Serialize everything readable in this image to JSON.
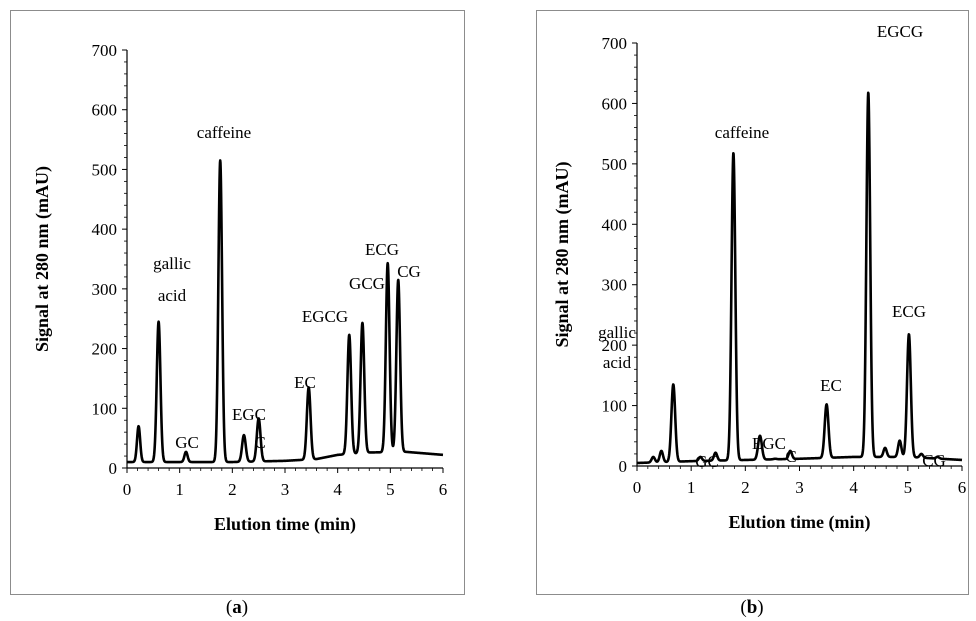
{
  "captions": {
    "a": "a",
    "b": "b"
  },
  "chart_data": [
    {
      "type": "line",
      "panel": "a",
      "title": "",
      "xlabel": "Elution time (min)",
      "ylabel": "Signal at 280 nm (mAU)",
      "xlim": [
        0,
        6
      ],
      "ylim": [
        0,
        700
      ],
      "xticks": [
        "0",
        "1",
        "2",
        "3",
        "4",
        "5",
        "6"
      ],
      "yticks": [
        "0",
        "100",
        "200",
        "300",
        "400",
        "500",
        "600",
        "700"
      ],
      "grid": false,
      "legend": "none",
      "line_color": "#000000",
      "baseline": [
        [
          0,
          10
        ],
        [
          2.0,
          10
        ],
        [
          3.0,
          12
        ],
        [
          3.6,
          15
        ],
        [
          4.0,
          22
        ],
        [
          4.6,
          26
        ],
        [
          5.3,
          27
        ],
        [
          6.0,
          22
        ]
      ],
      "peaks": [
        {
          "t": 0.22,
          "h": 70,
          "w": 0.03,
          "label": ""
        },
        {
          "t": 0.6,
          "h": 245,
          "w": 0.035,
          "label": "gallic acid"
        },
        {
          "t": 1.12,
          "h": 27,
          "w": 0.03,
          "label": "GC"
        },
        {
          "t": 1.77,
          "h": 515,
          "w": 0.035,
          "label": "caffeine"
        },
        {
          "t": 2.22,
          "h": 55,
          "w": 0.035,
          "label": "EGC"
        },
        {
          "t": 2.5,
          "h": 83,
          "w": 0.035,
          "label": "C"
        },
        {
          "t": 3.45,
          "h": 135,
          "w": 0.035,
          "label": "EC"
        },
        {
          "t": 4.22,
          "h": 223,
          "w": 0.035,
          "label": "EGCG"
        },
        {
          "t": 4.47,
          "h": 243,
          "w": 0.035,
          "label": "GCG"
        },
        {
          "t": 4.95,
          "h": 343,
          "w": 0.035,
          "label": "ECG"
        },
        {
          "t": 5.15,
          "h": 315,
          "w": 0.035,
          "label": "CG"
        }
      ]
    },
    {
      "type": "line",
      "panel": "b",
      "title": "",
      "xlabel": "Elution time (min)",
      "ylabel": "Signal at 280 nm (mAU)",
      "xlim": [
        0,
        6
      ],
      "ylim": [
        0,
        700
      ],
      "xticks": [
        "0",
        "1",
        "2",
        "3",
        "4",
        "5",
        "6"
      ],
      "yticks": [
        "0",
        "100",
        "200",
        "300",
        "400",
        "500",
        "600",
        "700"
      ],
      "grid": false,
      "legend": "none",
      "line_color": "#000000",
      "baseline": [
        [
          0,
          5
        ],
        [
          1.0,
          8
        ],
        [
          2.0,
          10
        ],
        [
          3.0,
          12
        ],
        [
          4.0,
          15
        ],
        [
          5.0,
          15
        ],
        [
          6.0,
          10
        ]
      ],
      "peaks": [
        {
          "t": 0.3,
          "h": 15,
          "w": 0.03,
          "label": ""
        },
        {
          "t": 0.45,
          "h": 25,
          "w": 0.03,
          "label": ""
        },
        {
          "t": 0.67,
          "h": 135,
          "w": 0.035,
          "label": "gallic acid"
        },
        {
          "t": 1.17,
          "h": 15,
          "w": 0.03,
          "label": "GC"
        },
        {
          "t": 1.45,
          "h": 22,
          "w": 0.03,
          "label": ""
        },
        {
          "t": 1.78,
          "h": 518,
          "w": 0.035,
          "label": "caffeine"
        },
        {
          "t": 2.27,
          "h": 50,
          "w": 0.035,
          "label": "EGC"
        },
        {
          "t": 2.55,
          "h": 12,
          "w": 0.03,
          "label": "C"
        },
        {
          "t": 2.83,
          "h": 25,
          "w": 0.03,
          "label": ""
        },
        {
          "t": 3.5,
          "h": 102,
          "w": 0.035,
          "label": "EC"
        },
        {
          "t": 4.27,
          "h": 618,
          "w": 0.035,
          "label": "EGCG"
        },
        {
          "t": 4.58,
          "h": 30,
          "w": 0.03,
          "label": ""
        },
        {
          "t": 4.85,
          "h": 42,
          "w": 0.03,
          "label": ""
        },
        {
          "t": 5.02,
          "h": 218,
          "w": 0.035,
          "label": "ECG"
        },
        {
          "t": 5.25,
          "h": 20,
          "w": 0.03,
          "label": "CG"
        },
        {
          "t": 5.55,
          "h": 15,
          "w": 0.03,
          "label": ""
        }
      ]
    }
  ]
}
